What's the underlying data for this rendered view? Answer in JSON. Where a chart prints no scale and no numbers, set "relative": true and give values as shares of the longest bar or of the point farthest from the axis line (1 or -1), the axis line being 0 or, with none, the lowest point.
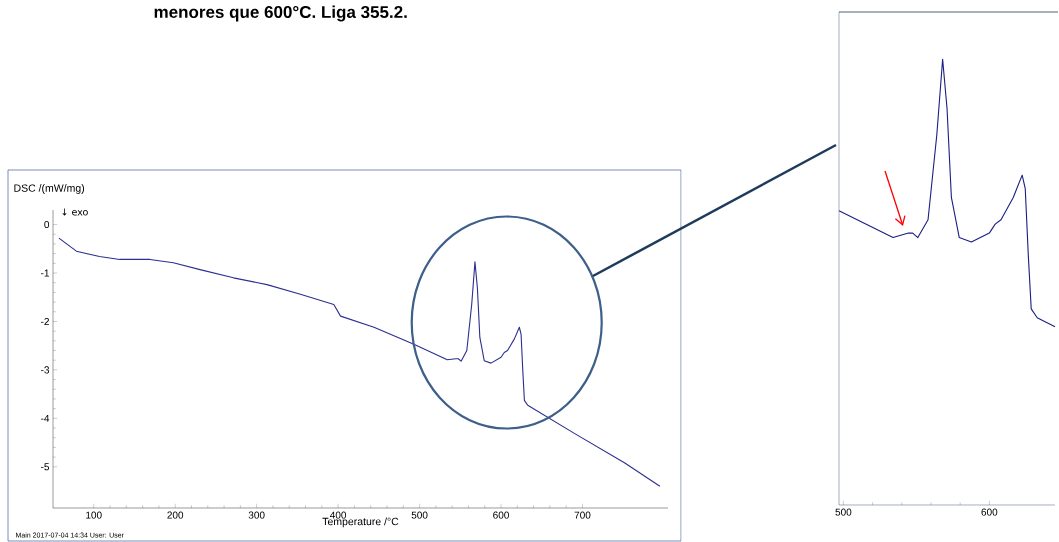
{
  "chart_data": [
    {
      "type": "line",
      "title": "menores que 600°C. Liga 355.2.",
      "xlabel": "Temperature /°C",
      "ylabel": "DSC /(mW/mg)",
      "annotations": [
        "↓ exo",
        "Main   2017-07-04 14:34   User: User"
      ],
      "xlim": [
        50,
        805
      ],
      "ylim": [
        -5.85,
        0.3
      ],
      "xticks": [
        100,
        200,
        300,
        400,
        500,
        600,
        700
      ],
      "yticks": [
        0,
        -1,
        -2,
        -3,
        -4,
        -5
      ],
      "series": [
        {
          "color": "#2b2f8f",
          "x": [
            57.3,
            78.7,
            107,
            132,
            169,
            197.7,
            230.5,
            271.5,
            312.7,
            353.7,
            394.7,
            403,
            444,
            493,
            534,
            544.6,
            547.5,
            551,
            558,
            564,
            568,
            571,
            574,
            579.4,
            587.7,
            600,
            604,
            608,
            616.4,
            622.5,
            624.6,
            626.7,
            628.7,
            632.8,
            690,
            752,
            795
          ],
          "values": [
            -0.28,
            -0.55,
            -0.66,
            -0.72,
            -0.72,
            -0.79,
            -0.93,
            -1.1,
            -1.24,
            -1.44,
            -1.65,
            -1.89,
            -2.12,
            -2.47,
            -2.79,
            -2.77,
            -2.77,
            -2.82,
            -2.6,
            -1.65,
            -0.77,
            -1.31,
            -2.33,
            -2.81,
            -2.86,
            -2.74,
            -2.64,
            -2.6,
            -2.36,
            -2.12,
            -2.26,
            -3.01,
            -3.63,
            -3.73,
            -4.31,
            -4.92,
            -5.4
          ]
        }
      ]
    },
    {
      "type": "line",
      "relative": true,
      "xlim": [
        497,
        645
      ],
      "xticks": [
        500,
        600
      ],
      "tick_labels": "x",
      "series": [
        {
          "color": "#1a1f80",
          "x": [
            497,
            534,
            544.6,
            547.5,
            551,
            558,
            564,
            568,
            571,
            574,
            579.4,
            587.7,
            600,
            604,
            608,
            616.4,
            622.5,
            624.6,
            626.7,
            628.7,
            632.8,
            645
          ],
          "values": [
            0.66,
            0.6,
            0.61,
            0.61,
            0.6,
            0.64,
            0.83,
            1,
            0.89,
            0.69,
            0.6,
            0.59,
            0.61,
            0.63,
            0.64,
            0.69,
            0.74,
            0.71,
            0.56,
            0.44,
            0.42,
            0.4
          ]
        }
      ]
    }
  ]
}
